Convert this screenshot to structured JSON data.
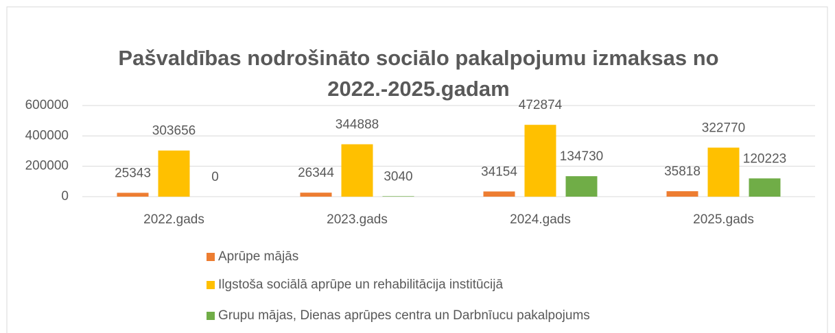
{
  "chart_data": {
    "type": "bar",
    "title": "Pašvaldības nodrošināto sociālo pakalpojumu izmaksas no 2022.-2025.gadam",
    "categories": [
      "2022.gads",
      "2023.gads",
      "2024.gads",
      "2025.gads"
    ],
    "series": [
      {
        "name": "Aprūpe mājās",
        "color": "#ED7D31",
        "values": [
          25343,
          26344,
          34154,
          35818
        ]
      },
      {
        "name": "Ilgstoša sociālā aprūpe un rehabilitācija institūcijā",
        "color": "#FFC000",
        "values": [
          303656,
          344888,
          472874,
          322770
        ]
      },
      {
        "name": "Grupu mājas, Dienas aprūpes centra un Darbnīucu pakalpojums",
        "color": "#70AD47",
        "values": [
          0,
          3040,
          134730,
          120223
        ]
      }
    ],
    "ylim": [
      0,
      600000
    ],
    "yticks": [
      0,
      200000,
      400000,
      600000
    ],
    "grid": true,
    "legend": "bottom"
  }
}
